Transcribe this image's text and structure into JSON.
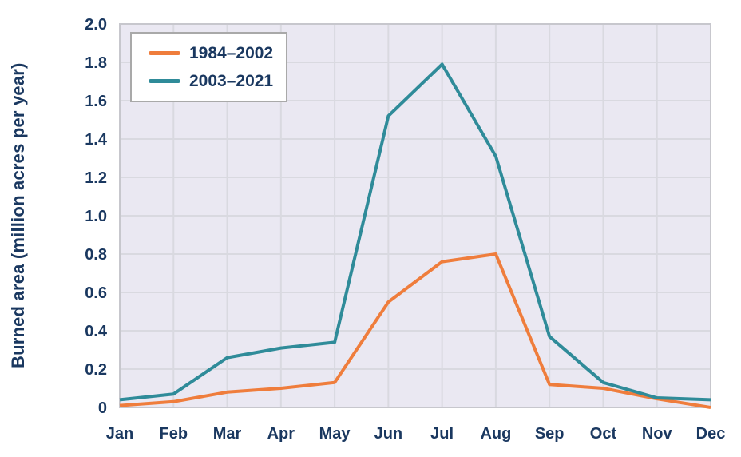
{
  "chart_data": {
    "type": "line",
    "title": "",
    "ylabel": "Burned area (million acres per year)",
    "xlabel": "",
    "categories": [
      "Jan",
      "Feb",
      "Mar",
      "Apr",
      "May",
      "Jun",
      "Jul",
      "Aug",
      "Sep",
      "Oct",
      "Nov",
      "Dec"
    ],
    "yticklabels": [
      "0",
      "0.2",
      "0.4",
      "0.6",
      "0.8",
      "1.0",
      "1.2",
      "1.4",
      "1.6",
      "1.8",
      "2.0"
    ],
    "ylim": [
      0,
      2.0
    ],
    "grid": true,
    "legend_position": "top-left",
    "series": [
      {
        "name": "1984–2002",
        "color": "#EF7D3C",
        "values": [
          0.01,
          0.03,
          0.08,
          0.1,
          0.13,
          0.55,
          0.76,
          0.8,
          0.12,
          0.1,
          0.045,
          0.0
        ]
      },
      {
        "name": "2003–2021",
        "color": "#2F8B99",
        "values": [
          0.04,
          0.07,
          0.26,
          0.31,
          0.34,
          1.52,
          1.79,
          1.31,
          0.37,
          0.13,
          0.05,
          0.04
        ]
      }
    ],
    "colors": {
      "axis_text": "#1A3860",
      "plot_background": "#EAE8F2",
      "gridline": "#D9D9E0",
      "plot_border": "#C7C7CD",
      "legend_border": "#A9A9A9",
      "legend_background": "#FFFFFF",
      "figure_background": "#FFFFFF"
    }
  }
}
